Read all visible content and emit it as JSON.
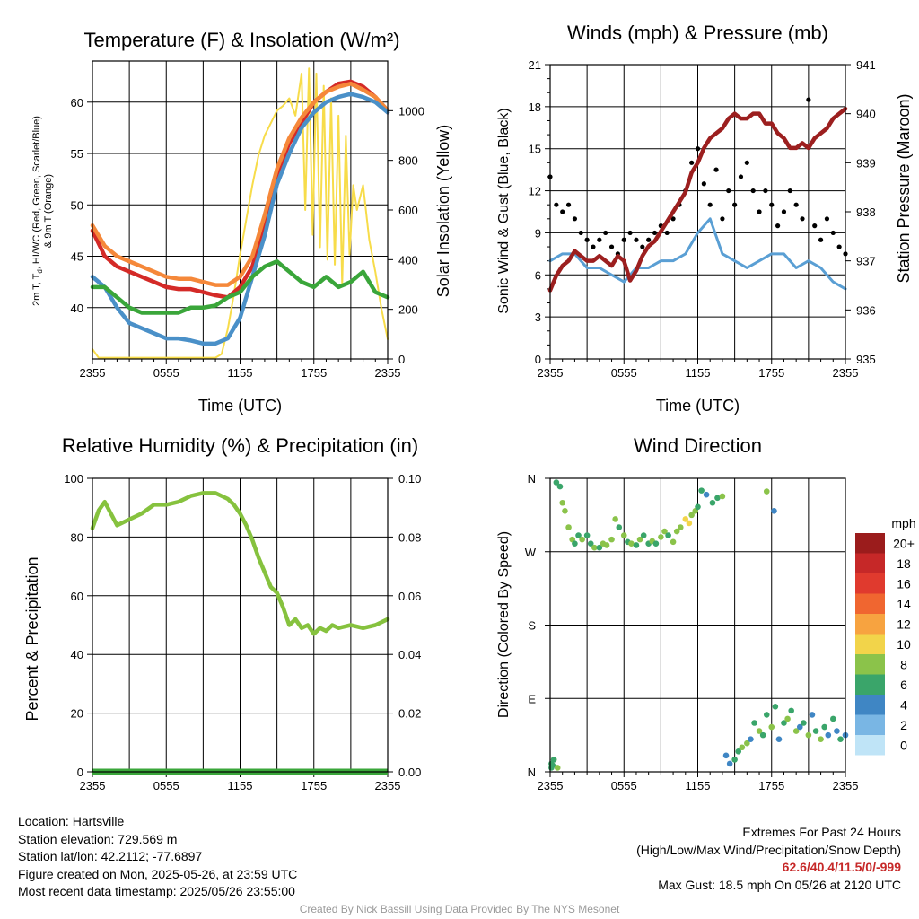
{
  "x_ticks": [
    "2355",
    "0555",
    "1155",
    "1755",
    "2355"
  ],
  "colors": {
    "temp_red": "#d42a27",
    "dew_green": "#3aa63a",
    "heat_index_blue": "#4a90c8",
    "temp9m_orange": "#f5883a",
    "solar_yellow": "#f7dc4a",
    "wind_blue": "#5a9fd4",
    "gust_black": "#000000",
    "pressure_maroon": "#9c1f1f",
    "humidity_green": "#86c23e",
    "precip_green": "#3aa63a"
  },
  "chart_data": [
    {
      "type": "line",
      "title": "Temperature (F) & Insolation (W/m²)",
      "xlabel": "Time (UTC)",
      "ylabel": "2m T, Td, HI/WC (Red, Green, Scarlet/Blue) & 9m T (Orange)",
      "ylabel_lines": [
        "2m T, T",
        "d",
        ", HI/WC (Red, Green, Scarlet/Blue)",
        "& 9m T (Orange)"
      ],
      "ylabel_right": "Solar Insolation (Yellow)",
      "ylim": [
        35,
        64
      ],
      "ylim_right": [
        0,
        1200
      ],
      "yticks": [
        40,
        45,
        50,
        55,
        60
      ],
      "yticks_right": [
        0,
        200,
        400,
        600,
        800,
        1000
      ],
      "x_hours": [
        0,
        1,
        2,
        3,
        4,
        5,
        6,
        7,
        8,
        9,
        10,
        11,
        12,
        13,
        14,
        15,
        16,
        17,
        18,
        19,
        20,
        21,
        22,
        23,
        24
      ],
      "series": [
        {
          "name": "2m T",
          "color_key": "temp_red",
          "values": [
            47.5,
            45,
            44,
            43.5,
            43,
            42.5,
            42,
            41.8,
            41.8,
            41.5,
            41.2,
            41,
            42,
            44,
            48,
            53,
            56,
            58,
            60,
            61,
            61.8,
            62,
            61.5,
            60.5,
            59
          ]
        },
        {
          "name": "9m T",
          "color_key": "temp9m_orange",
          "values": [
            48,
            46,
            45,
            44.5,
            44,
            43.5,
            43,
            42.8,
            42.8,
            42.5,
            42.2,
            42.2,
            43,
            45,
            49,
            53.5,
            56.5,
            58.5,
            60,
            61,
            61.5,
            61.8,
            61.2,
            60.5,
            59.2
          ]
        },
        {
          "name": "HI/WC",
          "color_key": "heat_index_blue",
          "values": [
            43,
            42,
            40,
            38.5,
            38,
            37.5,
            37,
            37,
            36.8,
            36.5,
            36.5,
            37,
            39,
            43,
            47,
            52,
            55,
            57.5,
            59,
            60,
            60.5,
            60.8,
            60.5,
            60,
            59
          ]
        },
        {
          "name": "Td",
          "color_key": "dew_green",
          "values": [
            42,
            42,
            41,
            40,
            39.5,
            39.5,
            39.5,
            39.5,
            40,
            40,
            40.2,
            41,
            41.5,
            43,
            44,
            44.5,
            43.5,
            42.5,
            42,
            43,
            42,
            42.5,
            43.5,
            41.5,
            41
          ]
        }
      ],
      "solar": {
        "name": "Solar Insolation",
        "color_key": "solar_yellow",
        "x_hours": [
          0,
          0.5,
          1,
          2,
          3,
          4,
          5,
          6,
          7,
          8,
          9,
          10,
          10.5,
          11,
          11.5,
          12,
          12.5,
          13,
          13.5,
          14,
          14.5,
          15,
          15.5,
          16,
          16.5,
          17,
          17.3,
          17.6,
          17.9,
          18.2,
          18.5,
          18.8,
          19.1,
          19.4,
          19.7,
          20,
          20.3,
          20.6,
          20.9,
          21.2,
          21.5,
          22,
          22.5,
          23,
          23.5,
          24
        ],
        "values": [
          40,
          5,
          5,
          5,
          5,
          5,
          5,
          5,
          5,
          5,
          5,
          5,
          20,
          120,
          260,
          420,
          560,
          700,
          820,
          900,
          950,
          1000,
          1020,
          1050,
          980,
          1150,
          600,
          1170,
          500,
          1150,
          450,
          1100,
          400,
          1050,
          380,
          980,
          300,
          900,
          420,
          700,
          600,
          700,
          480,
          350,
          200,
          80
        ]
      }
    },
    {
      "type": "line",
      "title": "Winds (mph) & Pressure (mb)",
      "xlabel": "Time (UTC)",
      "ylabel": "Sonic Wind & Gust (Blue, Black)",
      "ylabel_right": "Station Pressure (Maroon)",
      "ylim": [
        0,
        21
      ],
      "ylim_right": [
        935,
        941
      ],
      "yticks": [
        0,
        3,
        6,
        9,
        12,
        15,
        18,
        21
      ],
      "yticks_right": [
        935,
        936,
        937,
        938,
        939,
        940,
        941
      ],
      "wind": {
        "name": "Sonic Wind",
        "color_key": "wind_blue",
        "x_hours": [
          0,
          1,
          2,
          3,
          4,
          5,
          6,
          7,
          8,
          9,
          10,
          11,
          12,
          13,
          14,
          15,
          16,
          17,
          18,
          19,
          20,
          21,
          22,
          23,
          24
        ],
        "values": [
          7,
          7.5,
          7.5,
          6.5,
          6.5,
          6,
          5.5,
          6.5,
          6.5,
          7,
          7,
          7.5,
          9,
          10,
          7.5,
          7,
          6.5,
          7,
          7.5,
          7.5,
          6.5,
          7,
          6.5,
          5.5,
          5
        ]
      },
      "gust": {
        "name": "Gust",
        "color_key": "gust_black",
        "x_hours": [
          0,
          0.5,
          1,
          1.5,
          2,
          2.5,
          3,
          3.5,
          4,
          4.5,
          5,
          5.5,
          6,
          6.5,
          7,
          7.5,
          8,
          8.5,
          9,
          9.5,
          10,
          10.5,
          11,
          11.5,
          12,
          12.5,
          13,
          13.5,
          14,
          14.5,
          15,
          15.5,
          16,
          16.5,
          17,
          17.5,
          18,
          18.5,
          19,
          19.5,
          20,
          20.5,
          21,
          21.5,
          22,
          22.5,
          23,
          23.5,
          24
        ],
        "values": [
          13,
          11,
          10.5,
          11,
          10,
          9,
          8.5,
          8,
          8.5,
          9,
          8,
          7.5,
          8.5,
          9,
          8.5,
          8,
          8.5,
          9,
          9.5,
          9,
          10,
          11,
          12,
          14,
          15,
          12.5,
          11,
          13.5,
          10,
          12,
          11,
          13,
          14,
          12,
          10.5,
          12,
          11,
          9.5,
          10.5,
          12,
          11,
          10,
          18.5,
          9.5,
          8.5,
          10,
          9,
          8,
          7.5
        ]
      },
      "pressure": {
        "name": "Station Pressure",
        "color_key": "pressure_maroon",
        "x_hours": [
          0,
          0.5,
          1,
          1.5,
          2,
          2.5,
          3,
          3.5,
          4,
          4.5,
          5,
          5.5,
          6,
          6.5,
          7,
          7.5,
          8,
          8.5,
          9,
          9.5,
          10,
          10.5,
          11,
          11.5,
          12,
          12.5,
          13,
          13.5,
          14,
          14.5,
          15,
          15.5,
          16,
          16.5,
          17,
          17.5,
          18,
          18.5,
          19,
          19.5,
          20,
          20.5,
          21,
          21.5,
          22,
          22.5,
          23,
          23.5,
          24
        ],
        "values": [
          936.4,
          936.7,
          936.9,
          937.0,
          937.2,
          937.1,
          937.0,
          937.0,
          937.1,
          937.0,
          936.9,
          937.1,
          937.0,
          936.6,
          936.8,
          937.1,
          937.3,
          937.4,
          937.6,
          937.8,
          938.0,
          938.2,
          938.4,
          938.8,
          939.0,
          939.3,
          939.5,
          939.6,
          939.7,
          939.9,
          940.0,
          939.9,
          939.9,
          940.0,
          940.0,
          939.8,
          939.8,
          939.6,
          939.5,
          939.3,
          939.3,
          939.4,
          939.3,
          939.5,
          939.6,
          939.7,
          939.9,
          940.0,
          940.1
        ]
      }
    },
    {
      "type": "line",
      "title": "Relative Humidity (%) & Precipitation (in)",
      "xlabel": "",
      "ylabel": "Percent & Precipitation",
      "ylim": [
        0,
        100
      ],
      "ylim_right": [
        0,
        0.1
      ],
      "yticks": [
        0,
        20,
        40,
        60,
        80,
        100
      ],
      "yticks_right": [
        "0.00",
        "0.02",
        "0.04",
        "0.06",
        "0.08",
        "0.10"
      ],
      "humidity": {
        "name": "Relative Humidity",
        "color_key": "humidity_green",
        "x_hours": [
          0,
          0.5,
          1,
          1.5,
          2,
          3,
          4,
          5,
          6,
          7,
          8,
          9,
          10,
          10.5,
          11,
          11.5,
          12,
          12.5,
          13,
          13.5,
          14,
          14.5,
          15,
          15.5,
          16,
          16.5,
          17,
          17.5,
          18,
          18.5,
          19,
          19.5,
          20,
          21,
          22,
          23,
          23.5,
          24
        ],
        "values": [
          83,
          89,
          92,
          88,
          84,
          86,
          88,
          91,
          91,
          92,
          94,
          95,
          95,
          94,
          93,
          91,
          88,
          84,
          79,
          73,
          68,
          63,
          61,
          56,
          50,
          52,
          49,
          50,
          47,
          49,
          48,
          50,
          49,
          50,
          49,
          50,
          51,
          52
        ]
      },
      "precip": {
        "name": "Precipitation",
        "color_key": "precip_green",
        "value": 0
      }
    },
    {
      "type": "scatter",
      "title": "Wind Direction",
      "xlabel": "",
      "ylabel": "Direction (Colored By Speed)",
      "yticks": [
        "N",
        "E",
        "S",
        "W",
        "N"
      ],
      "legend": {
        "title": "mph",
        "labels": [
          "20+",
          "18",
          "16",
          "14",
          "12",
          "10",
          "8",
          "6",
          "4",
          "2",
          "0"
        ],
        "colors": [
          "#9b1c1c",
          "#c62828",
          "#e03a2e",
          "#f06630",
          "#f7a340",
          "#f2d44a",
          "#8bc34a",
          "#3aa56a",
          "#3f86c4",
          "#79b6e4",
          "#bfe4f7"
        ]
      },
      "points_x_hours": [
        0.1,
        0.2,
        0.3,
        0.5,
        0.8,
        1,
        1.2,
        1.5,
        1.8,
        2,
        2.3,
        2.6,
        3,
        3.3,
        3.6,
        4,
        4.3,
        4.6,
        5,
        5.3,
        5.6,
        6,
        6.3,
        6.6,
        7,
        7.3,
        7.6,
        8,
        8.3,
        8.6,
        9,
        9.3,
        9.6,
        10,
        10.3,
        10.6,
        11,
        11.3,
        11.5,
        11.8,
        12,
        12.3,
        12.7,
        13.2,
        13.6,
        14,
        14.3,
        14.6,
        15,
        15.3,
        15.6,
        16,
        16.3,
        16.6,
        17,
        17.3,
        17.6,
        18,
        18.3,
        18.6,
        19,
        19.3,
        19.6,
        20,
        20.3,
        20.6,
        21,
        21.3,
        21.6,
        22,
        22.3,
        22.6,
        23,
        23.3,
        23.6,
        24,
        0.1,
        0.3,
        0.6,
        17.6,
        18.2
      ],
      "points_deg": [
        5,
        8,
        15,
        355,
        350,
        330,
        320,
        300,
        285,
        280,
        290,
        285,
        290,
        280,
        275,
        275,
        280,
        278,
        285,
        310,
        300,
        290,
        282,
        280,
        278,
        285,
        290,
        280,
        283,
        280,
        288,
        295,
        290,
        282,
        295,
        300,
        310,
        305,
        315,
        320,
        325,
        345,
        340,
        330,
        336,
        338,
        20,
        10,
        15,
        25,
        30,
        35,
        40,
        60,
        50,
        45,
        70,
        55,
        80,
        40,
        60,
        65,
        75,
        50,
        55,
        60,
        45,
        70,
        50,
        40,
        55,
        45,
        65,
        50,
        40,
        45,
        10,
        15,
        5,
        344,
        320
      ],
      "points_speed": [
        6,
        6,
        7,
        5,
        6,
        7,
        7,
        8,
        7,
        6,
        6,
        7,
        6,
        6,
        7,
        6,
        8,
        7,
        7,
        8,
        6,
        7,
        6,
        7,
        6,
        7,
        6,
        6,
        7,
        6,
        7,
        8,
        6,
        7,
        8,
        7,
        9,
        10,
        8,
        7,
        6,
        5,
        4,
        5,
        6,
        7,
        3,
        4,
        5,
        6,
        7,
        8,
        4,
        5,
        7,
        6,
        5,
        8,
        6,
        4,
        6,
        8,
        5,
        7,
        3,
        6,
        8,
        4,
        6,
        7,
        5,
        4,
        6,
        3,
        5,
        4,
        5,
        6,
        7,
        8,
        4
      ]
    }
  ],
  "info_left": [
    "Location: Hartsville",
    "Station elevation: 729.569 m",
    "Station lat/lon: 42.2112; -77.6897",
    "Figure created on Mon, 2025-05-26, at 23:59 UTC",
    "Most recent data timestamp: 2025/05/26 23:55:00"
  ],
  "extremes": {
    "title": "Extremes For Past 24 Hours",
    "subtitle": "(High/Low/Max Wind/Precipitation/Snow Depth)",
    "values": "62.6/40.4/11.5/0/-999",
    "max_gust": "Max Gust: 18.5 mph On 05/26 at 2120 UTC"
  },
  "credit": "Created By Nick Bassill Using Data Provided By The NYS Mesonet"
}
